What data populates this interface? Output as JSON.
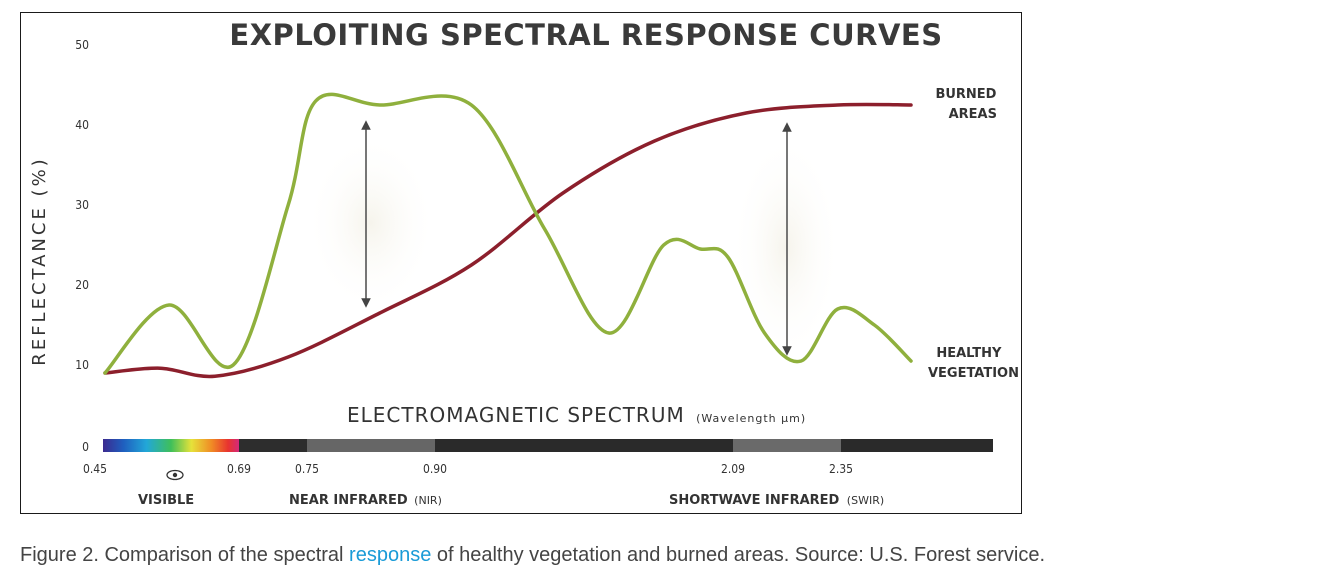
{
  "chart_data": {
    "type": "line",
    "title": "EXPLOITING SPECTRAL RESPONSE CURVES",
    "ylabel": "REFLECTANCE (%)",
    "xlabel": "ELECTROMAGNETIC SPECTRUM",
    "xlabel_unit": "(Wavelength µm)",
    "ylim": [
      0,
      50
    ],
    "yticks": [
      "0",
      "10",
      "20",
      "30",
      "40",
      "50"
    ],
    "xticks": [
      "0.45",
      "0.69",
      "0.75",
      "0.90",
      "2.09",
      "2.35"
    ],
    "series": [
      {
        "name_lines": [
          "BURNED",
          "AREAS"
        ],
        "color": "#8c1f2c",
        "points": [
          [
            0,
            9
          ],
          [
            6,
            9.6
          ],
          [
            12,
            8.6
          ],
          [
            20,
            11
          ],
          [
            30,
            16.5
          ],
          [
            40,
            22.5
          ],
          [
            50,
            31.5
          ],
          [
            60,
            38
          ],
          [
            70,
            41.5
          ],
          [
            80,
            42.5
          ],
          [
            88,
            42.5
          ]
        ]
      },
      {
        "name_lines": [
          "HEALTHY",
          "VEGETATION"
        ],
        "color": "#8fb03d",
        "points": [
          [
            0,
            9
          ],
          [
            7,
            17.5
          ],
          [
            14,
            10
          ],
          [
            20,
            30
          ],
          [
            23,
            43
          ],
          [
            30,
            42.5
          ],
          [
            40,
            42.5
          ],
          [
            48,
            27
          ],
          [
            55,
            14
          ],
          [
            61,
            25
          ],
          [
            65,
            24.5
          ],
          [
            68,
            23.5
          ],
          [
            72,
            14
          ],
          [
            76,
            10.5
          ],
          [
            80,
            17
          ],
          [
            84,
            15
          ],
          [
            88,
            10.5
          ]
        ]
      }
    ],
    "bands": [
      {
        "label": "VISIBLE",
        "abbr": ""
      },
      {
        "label": "NEAR INFRARED",
        "abbr": "(NIR)"
      },
      {
        "label": "SHORTWAVE INFRARED",
        "abbr": "(SWIR)"
      }
    ],
    "spectrum_colors": [
      "#3b2a8f",
      "#1f5fbf",
      "#22a7d8",
      "#3fbf5a",
      "#e6e23a",
      "#f08a25",
      "#e8342f",
      "#d42a7a",
      "#2a2a2a",
      "#6a6a6a",
      "#2a2a2a",
      "#6a6a6a",
      "#2a2a2a"
    ],
    "arrows": "double-headed at NIR and SWIR",
    "grid": false
  },
  "caption": {
    "before": "Figure 2. Comparison of the spectral ",
    "link": "response",
    "after": " of healthy vegetation and burned areas. Source: U.S. Forest service."
  }
}
